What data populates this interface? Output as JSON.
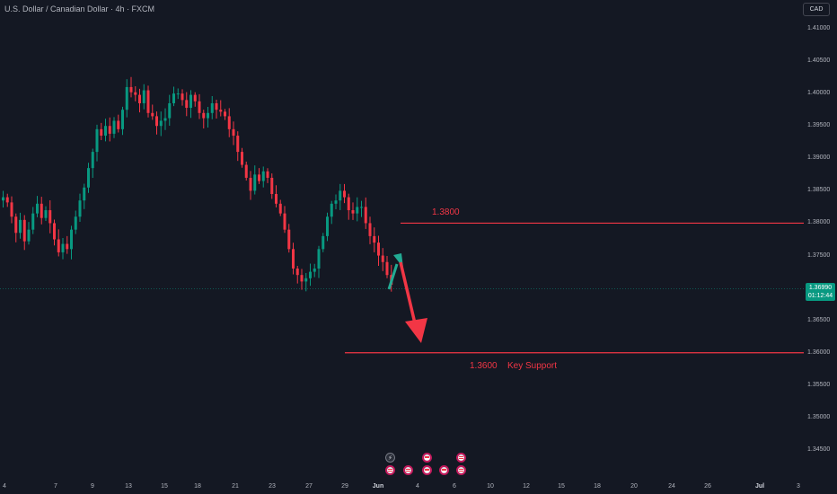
{
  "symbol": {
    "title": "U.S. Dollar / Canadian Dollar · 4h · FXCM"
  },
  "currency": "CAD",
  "current_price": {
    "value": "1.36990",
    "countdown": "01:12:44"
  },
  "price_axis": {
    "labels": [
      "1.41000",
      "1.40500",
      "1.40000",
      "1.39500",
      "1.39000",
      "1.38500",
      "1.38000",
      "1.37500",
      "1.37000",
      "1.36500",
      "1.36000",
      "1.35500",
      "1.35000",
      "1.34500"
    ]
  },
  "time_axis": {
    "labels": [
      "4",
      "7",
      "9",
      "13",
      "15",
      "18",
      "21",
      "23",
      "27",
      "29",
      "Jun",
      "4",
      "6",
      "10",
      "12",
      "15",
      "18",
      "20",
      "24",
      "26",
      "Jul",
      "3"
    ]
  },
  "annotations": {
    "resistance_label": "1.3800",
    "support_label": "1.3600",
    "support_text": "Key Support"
  },
  "colors": {
    "background": "#141823",
    "up": "#089981",
    "down": "#f23645",
    "level_line": "#f23645",
    "arrow_up": "#22ab94",
    "arrow_down": "#f23645"
  },
  "events": [
    {
      "icon": "lightning-icon"
    },
    {
      "icon": "flag-ca-icon"
    },
    {
      "icon": "flag-ca-icon"
    },
    {
      "icon": "flag-us-icon"
    },
    {
      "icon": "flag-ca-icon"
    },
    {
      "icon": "flag-ca-icon"
    },
    {
      "icon": "flag-us-icon"
    },
    {
      "icon": "flag-us-icon"
    }
  ],
  "chart_data": {
    "type": "candlestick",
    "symbol": "USDCAD",
    "interval": "4h",
    "ylim": [
      1.342,
      1.412
    ],
    "levels": [
      {
        "price": 1.38,
        "label": "1.3800"
      },
      {
        "price": 1.36,
        "label": "1.3600 Key Support"
      }
    ],
    "close": [
      1.384,
      1.3832,
      1.381,
      1.3785,
      1.3805,
      1.3772,
      1.379,
      1.3815,
      1.383,
      1.3808,
      1.382,
      1.38,
      1.3775,
      1.3755,
      1.3768,
      1.376,
      1.379,
      1.381,
      1.3835,
      1.3855,
      1.3885,
      1.391,
      1.3945,
      1.3935,
      1.395,
      1.3938,
      1.3958,
      1.3945,
      1.3975,
      1.401,
      1.4002,
      1.3998,
      1.3985,
      1.4005,
      1.397,
      1.3965,
      1.395,
      1.3958,
      1.3962,
      1.3985,
      1.4,
      1.4,
      1.399,
      1.3978,
      1.3998,
      1.3988,
      1.397,
      1.3962,
      1.397,
      1.3985,
      1.3975,
      1.3972,
      1.3965,
      1.3945,
      1.3935,
      1.391,
      1.389,
      1.387,
      1.385,
      1.3875,
      1.3865,
      1.388,
      1.387,
      1.3845,
      1.383,
      1.3815,
      1.379,
      1.376,
      1.373,
      1.372,
      1.371,
      1.3715,
      1.3725,
      1.373,
      1.376,
      1.378,
      1.381,
      1.383,
      1.3835,
      1.385,
      1.384,
      1.382,
      1.3815,
      1.3825,
      1.3825,
      1.38,
      1.378,
      1.377,
      1.375,
      1.374,
      1.372,
      1.3705
    ]
  }
}
